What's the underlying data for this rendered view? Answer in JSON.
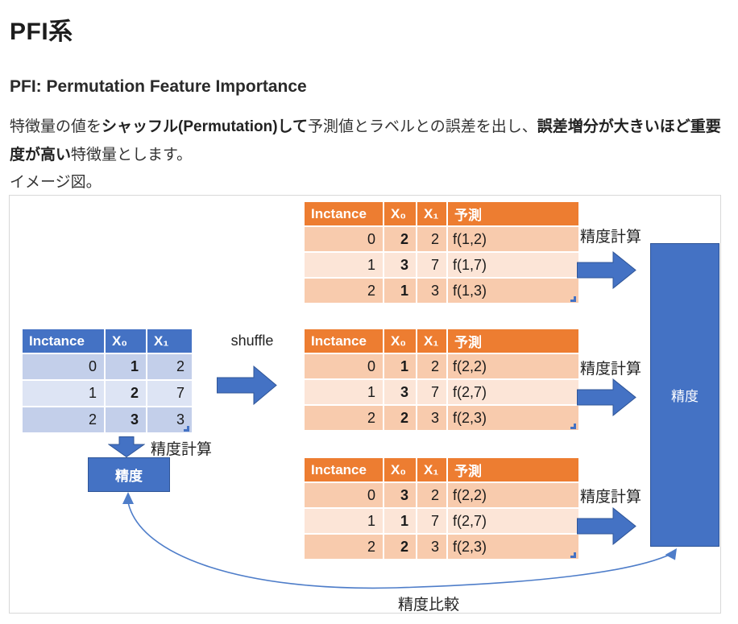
{
  "page": {
    "title": "PFI系",
    "subtitle": "PFI: Permutation Feature Importance",
    "paragraph": {
      "seg1": "特徴量の値を",
      "seg2_bold": "シャッフル(Permutation)して",
      "seg3": "予測値とラベルとの誤差を出し、",
      "seg4_bold": "誤差増分が大きいほど重要度が高い",
      "seg5": "特徴量とします。"
    },
    "caption": "イメージ図。"
  },
  "diagram": {
    "labels": {
      "shuffle": "shuffle",
      "accuracy_calc": "精度計算",
      "accuracy": "精度",
      "accuracy_compare": "精度比較"
    },
    "original_table": {
      "headers": [
        "Inctance",
        "X₀",
        "X₁"
      ],
      "rows": [
        [
          "0",
          "1",
          "2"
        ],
        [
          "1",
          "2",
          "7"
        ],
        [
          "2",
          "3",
          "3"
        ]
      ]
    },
    "shuffled_tables": [
      {
        "headers": [
          "Inctance",
          "X₀",
          "X₁",
          "予測"
        ],
        "rows": [
          [
            "0",
            "2",
            "2",
            "f(1,2)"
          ],
          [
            "1",
            "3",
            "7",
            "f(1,7)"
          ],
          [
            "2",
            "1",
            "3",
            "f(1,3)"
          ]
        ]
      },
      {
        "headers": [
          "Inctance",
          "X₀",
          "X₁",
          "予測"
        ],
        "rows": [
          [
            "0",
            "1",
            "2",
            "f(2,2)"
          ],
          [
            "1",
            "3",
            "7",
            "f(2,7)"
          ],
          [
            "2",
            "2",
            "3",
            "f(2,3)"
          ]
        ]
      },
      {
        "headers": [
          "Inctance",
          "X₀",
          "X₁",
          "予測"
        ],
        "rows": [
          [
            "0",
            "3",
            "2",
            "f(2,2)"
          ],
          [
            "1",
            "1",
            "7",
            "f(2,7)"
          ],
          [
            "2",
            "2",
            "3",
            "f(2,3)"
          ]
        ]
      }
    ]
  },
  "colors": {
    "blue_header": "#4472C4",
    "blue_band_dark": "#C3CFEA",
    "blue_band_light": "#DDE4F4",
    "orange_header": "#ED7D31",
    "orange_band_dark": "#F8CBAD",
    "orange_band_light": "#FCE5D7",
    "arrow_fill": "#4472C4",
    "arrow_stroke": "#2F5597",
    "connector": "#4E7DC9",
    "diagram_border": "#D8D8D8"
  }
}
